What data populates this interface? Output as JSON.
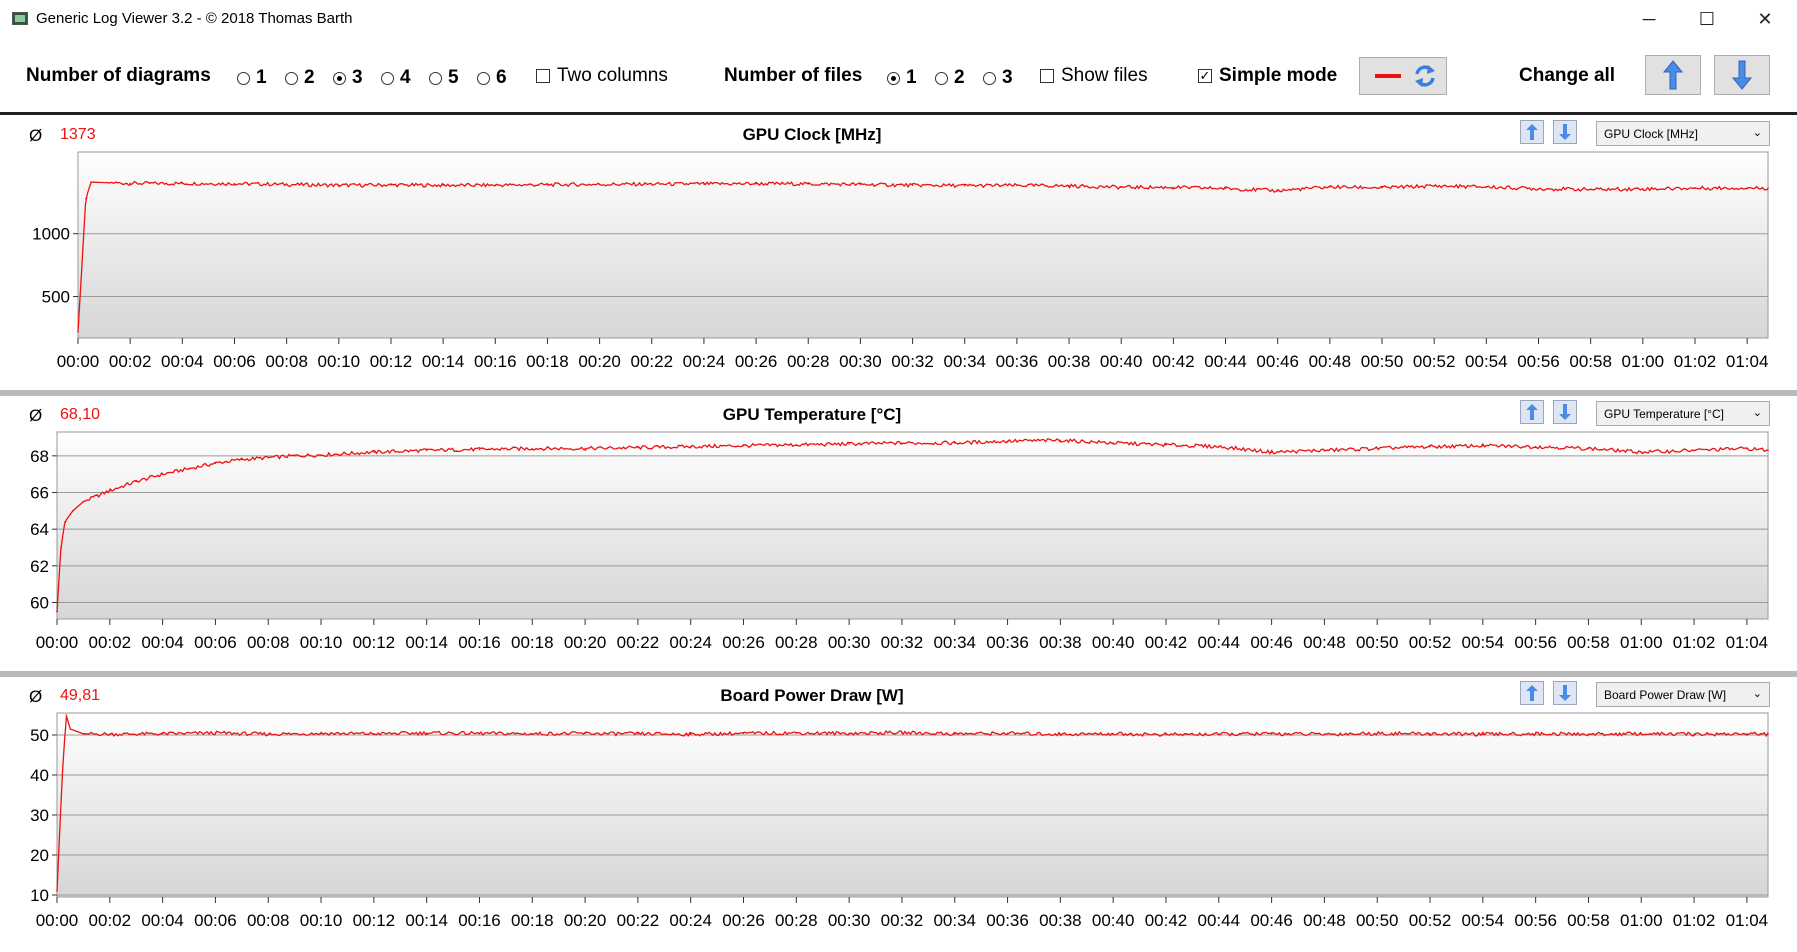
{
  "window": {
    "title": "Generic Log Viewer 3.2 - © 2018 Thomas Barth",
    "minimize_glyph": "─",
    "maximize_glyph": "☐",
    "close_glyph": "✕"
  },
  "toolbar": {
    "diagrams_label": "Number of diagrams",
    "diagram_options": [
      "1",
      "2",
      "3",
      "4",
      "5",
      "6"
    ],
    "diagrams_selected": "3",
    "two_columns_label": "Two columns",
    "two_columns_checked": false,
    "files_label": "Number of files",
    "file_options": [
      "1",
      "2",
      "3"
    ],
    "files_selected": "1",
    "show_files_label": "Show files",
    "show_files_checked": false,
    "simple_mode_label": "Simple mode",
    "simple_mode_checked": true,
    "change_all_label": "Change all"
  },
  "colors": {
    "line": "#ee1111",
    "accent_blue": "#3b7ddd",
    "grid": "#999999"
  },
  "icons": [
    "red-line-icon",
    "refresh-icon",
    "arrow-up-icon",
    "arrow-down-icon",
    "avg-icon"
  ],
  "panels": [
    {
      "avg_symbol": "Ø",
      "avg_value": "1373",
      "title": "GPU Clock [MHz]",
      "combo_value": "GPU Clock [MHz]"
    },
    {
      "avg_symbol": "Ø",
      "avg_value": "68,10",
      "title": "GPU Temperature [°C]",
      "combo_value": "GPU Temperature [°C]"
    },
    {
      "avg_symbol": "Ø",
      "avg_value": "49,81",
      "title": "Board Power Draw [W]",
      "combo_value": "Board Power Draw [W]"
    }
  ],
  "chart_data": [
    {
      "type": "line",
      "title": "GPU Clock [MHz]",
      "xlabel": "",
      "ylabel": "",
      "x_ticks": [
        "00:00",
        "00:02",
        "00:04",
        "00:06",
        "00:08",
        "00:10",
        "00:12",
        "00:14",
        "00:16",
        "00:18",
        "00:20",
        "00:22",
        "00:24",
        "00:26",
        "00:28",
        "00:30",
        "00:32",
        "00:34",
        "00:36",
        "00:38",
        "00:40",
        "00:42",
        "00:44",
        "00:46",
        "00:48",
        "00:50",
        "00:52",
        "00:54",
        "00:56",
        "00:58",
        "01:00",
        "01:02",
        "01:04"
      ],
      "y_ticks": [
        500,
        1000
      ],
      "ylim": [
        170,
        1650
      ],
      "xlim_minutes": [
        0,
        64.8
      ],
      "grid": true,
      "series": [
        {
          "name": "",
          "x_minutes": [
            0,
            0.3,
            0.5,
            2,
            4,
            6,
            8,
            10,
            12,
            14,
            16,
            18,
            20,
            22,
            24,
            26,
            28,
            30,
            32,
            34,
            36,
            38,
            40,
            42,
            44,
            46,
            48,
            50,
            52,
            54,
            56,
            58,
            60,
            62,
            64,
            64.8
          ],
          "values": [
            220,
            1280,
            1410,
            1400,
            1400,
            1398,
            1392,
            1385,
            1388,
            1385,
            1386,
            1390,
            1392,
            1394,
            1396,
            1398,
            1396,
            1392,
            1386,
            1382,
            1384,
            1380,
            1370,
            1368,
            1360,
            1342,
            1372,
            1366,
            1380,
            1372,
            1358,
            1352,
            1356,
            1362,
            1364,
            1362
          ]
        }
      ]
    },
    {
      "type": "line",
      "title": "GPU Temperature [°C]",
      "xlabel": "",
      "ylabel": "",
      "x_ticks": [
        "00:00",
        "00:02",
        "00:04",
        "00:06",
        "00:08",
        "00:10",
        "00:12",
        "00:14",
        "00:16",
        "00:18",
        "00:20",
        "00:22",
        "00:24",
        "00:26",
        "00:28",
        "00:30",
        "00:32",
        "00:34",
        "00:36",
        "00:38",
        "00:40",
        "00:42",
        "00:44",
        "00:46",
        "00:48",
        "00:50",
        "00:52",
        "00:54",
        "00:56",
        "00:58",
        "01:00",
        "01:02",
        "01:04"
      ],
      "y_ticks": [
        60,
        62,
        64,
        66,
        68
      ],
      "ylim": [
        59.1,
        69.3
      ],
      "xlim_minutes": [
        0,
        64.8
      ],
      "grid": true,
      "series": [
        {
          "name": "",
          "x_minutes": [
            0,
            0.15,
            0.3,
            0.6,
            1,
            2,
            3,
            4,
            5,
            6,
            7,
            8,
            9,
            10,
            12,
            14,
            16,
            18,
            20,
            22,
            24,
            26,
            28,
            30,
            32,
            34,
            36,
            38,
            40,
            42,
            44,
            46,
            48,
            50,
            52,
            54,
            56,
            58,
            60,
            62,
            64,
            64.8
          ],
          "values": [
            59.5,
            63.0,
            64.4,
            65.0,
            65.5,
            66.1,
            66.6,
            67.0,
            67.3,
            67.6,
            67.8,
            67.9,
            68.0,
            68.05,
            68.2,
            68.3,
            68.35,
            68.4,
            68.4,
            68.45,
            68.5,
            68.55,
            68.6,
            68.65,
            68.7,
            68.7,
            68.8,
            68.85,
            68.7,
            68.6,
            68.5,
            68.2,
            68.3,
            68.4,
            68.5,
            68.55,
            68.5,
            68.4,
            68.2,
            68.3,
            68.4,
            68.3
          ]
        }
      ]
    },
    {
      "type": "line",
      "title": "Board Power Draw [W]",
      "xlabel": "",
      "ylabel": "",
      "x_ticks": [
        "00:00",
        "00:02",
        "00:04",
        "00:06",
        "00:08",
        "00:10",
        "00:12",
        "00:14",
        "00:16",
        "00:18",
        "00:20",
        "00:22",
        "00:24",
        "00:26",
        "00:28",
        "00:30",
        "00:32",
        "00:34",
        "00:36",
        "00:38",
        "00:40",
        "00:42",
        "00:44",
        "00:46",
        "00:48",
        "00:50",
        "00:52",
        "00:54",
        "00:56",
        "00:58",
        "01:00",
        "01:02",
        "01:04"
      ],
      "y_ticks": [
        10,
        20,
        30,
        40,
        50
      ],
      "ylim": [
        9.5,
        55.5
      ],
      "xlim_minutes": [
        0,
        64.8
      ],
      "grid": true,
      "series": [
        {
          "name": "",
          "x_minutes": [
            0,
            0.2,
            0.35,
            0.5,
            1,
            2,
            4,
            6,
            8,
            10,
            12,
            14,
            16,
            18,
            20,
            22,
            24,
            26,
            28,
            30,
            32,
            34,
            36,
            38,
            40,
            42,
            44,
            46,
            48,
            50,
            52,
            54,
            56,
            58,
            60,
            62,
            64,
            64.8
          ],
          "values": [
            11,
            40,
            55,
            51.5,
            50.3,
            50.2,
            50.3,
            50.5,
            50.2,
            50.4,
            50.3,
            50.5,
            50.4,
            50.3,
            50.4,
            50.3,
            50.2,
            50.4,
            50.5,
            50.4,
            50.6,
            50.3,
            50.4,
            50.2,
            50.3,
            50.1,
            50.2,
            50.3,
            50.2,
            50.4,
            50.3,
            50.2,
            50.3,
            50.2,
            50.3,
            50.2,
            50.3,
            50.2
          ]
        }
      ]
    }
  ]
}
